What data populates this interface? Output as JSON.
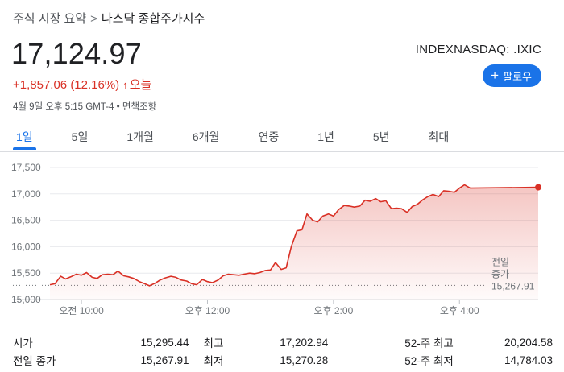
{
  "breadcrumb": {
    "parent": "주식 시장 요약",
    "separator": ">",
    "current": "나스닥 종합주가지수"
  },
  "quote": {
    "price": "17,124.97",
    "ticker": "INDEXNASDAQ: .IXIC",
    "change": "+1,857.06 (12.16%)",
    "change_arrow": "↑",
    "change_period": "오늘",
    "timestamp": "4월 9일 오후 5:15 GMT-4",
    "meta_separator": "•",
    "disclaimer": "면책조항",
    "up_color": "#d93025"
  },
  "follow_button": {
    "icon": "plus-icon",
    "label": "팔로우",
    "color": "#1a73e8"
  },
  "tabs": [
    {
      "label": "1일",
      "active": true
    },
    {
      "label": "5일",
      "active": false
    },
    {
      "label": "1개월",
      "active": false
    },
    {
      "label": "6개월",
      "active": false
    },
    {
      "label": "연중",
      "active": false
    },
    {
      "label": "1년",
      "active": false
    },
    {
      "label": "5년",
      "active": false
    },
    {
      "label": "최대",
      "active": false
    }
  ],
  "chart_data": {
    "type": "area",
    "title": "",
    "xlabel": "",
    "ylabel": "",
    "ylim": [
      15000,
      17500
    ],
    "yticks": [
      "17,500",
      "17,000",
      "16,500",
      "16,000",
      "15,500",
      "15,000"
    ],
    "ytick_values": [
      17500,
      17000,
      16500,
      16000,
      15500,
      15000
    ],
    "xticks": [
      {
        "label": "오전 10:00",
        "hour": 10.0
      },
      {
        "label": "오후 12:00",
        "hour": 12.0
      },
      {
        "label": "오후 2:00",
        "hour": 14.0
      },
      {
        "label": "오후 4:00",
        "hour": 16.0
      }
    ],
    "xlim": [
      9.5,
      17.25
    ],
    "grid": true,
    "line_color": "#d93025",
    "previous_close": {
      "label_line1": "전일",
      "label_line2": "종가",
      "value": 15267.91,
      "value_label": "15,267.91"
    },
    "series": [
      {
        "points": [
          [
            9.5,
            15280
          ],
          [
            9.58,
            15300
          ],
          [
            9.67,
            15440
          ],
          [
            9.75,
            15390
          ],
          [
            9.83,
            15430
          ],
          [
            9.92,
            15480
          ],
          [
            10.0,
            15460
          ],
          [
            10.08,
            15510
          ],
          [
            10.17,
            15420
          ],
          [
            10.25,
            15400
          ],
          [
            10.33,
            15470
          ],
          [
            10.42,
            15480
          ],
          [
            10.5,
            15470
          ],
          [
            10.58,
            15540
          ],
          [
            10.67,
            15450
          ],
          [
            10.75,
            15430
          ],
          [
            10.83,
            15400
          ],
          [
            10.92,
            15340
          ],
          [
            11.0,
            15300
          ],
          [
            11.08,
            15260
          ],
          [
            11.17,
            15310
          ],
          [
            11.25,
            15370
          ],
          [
            11.33,
            15410
          ],
          [
            11.42,
            15440
          ],
          [
            11.5,
            15420
          ],
          [
            11.58,
            15370
          ],
          [
            11.67,
            15350
          ],
          [
            11.75,
            15300
          ],
          [
            11.83,
            15280
          ],
          [
            11.92,
            15380
          ],
          [
            12.0,
            15340
          ],
          [
            12.08,
            15320
          ],
          [
            12.17,
            15370
          ],
          [
            12.25,
            15450
          ],
          [
            12.33,
            15480
          ],
          [
            12.42,
            15470
          ],
          [
            12.5,
            15460
          ],
          [
            12.58,
            15480
          ],
          [
            12.67,
            15500
          ],
          [
            12.75,
            15490
          ],
          [
            12.83,
            15510
          ],
          [
            12.92,
            15550
          ],
          [
            13.0,
            15560
          ],
          [
            13.08,
            15700
          ],
          [
            13.17,
            15570
          ],
          [
            13.25,
            15600
          ],
          [
            13.33,
            16000
          ],
          [
            13.42,
            16300
          ],
          [
            13.5,
            16320
          ],
          [
            13.58,
            16620
          ],
          [
            13.67,
            16500
          ],
          [
            13.75,
            16470
          ],
          [
            13.83,
            16580
          ],
          [
            13.92,
            16620
          ],
          [
            14.0,
            16580
          ],
          [
            14.08,
            16700
          ],
          [
            14.17,
            16780
          ],
          [
            14.25,
            16770
          ],
          [
            14.33,
            16750
          ],
          [
            14.42,
            16770
          ],
          [
            14.5,
            16880
          ],
          [
            14.58,
            16860
          ],
          [
            14.67,
            16910
          ],
          [
            14.75,
            16850
          ],
          [
            14.83,
            16870
          ],
          [
            14.92,
            16720
          ],
          [
            15.0,
            16730
          ],
          [
            15.08,
            16720
          ],
          [
            15.17,
            16650
          ],
          [
            15.25,
            16760
          ],
          [
            15.33,
            16800
          ],
          [
            15.42,
            16890
          ],
          [
            15.5,
            16950
          ],
          [
            15.58,
            16990
          ],
          [
            15.67,
            16950
          ],
          [
            15.75,
            17060
          ],
          [
            15.83,
            17050
          ],
          [
            15.92,
            17030
          ],
          [
            16.0,
            17110
          ],
          [
            16.08,
            17170
          ],
          [
            16.17,
            17110
          ],
          [
            17.25,
            17125
          ]
        ]
      }
    ]
  },
  "stats": [
    [
      {
        "label": "시가",
        "value": "15,295.44"
      },
      {
        "label": "최고",
        "value": "17,202.94"
      },
      {
        "label": "52-주 최고",
        "value": "20,204.58"
      }
    ],
    [
      {
        "label": "전일 종가",
        "value": "15,267.91"
      },
      {
        "label": "최저",
        "value": "15,270.28"
      },
      {
        "label": "52-주 최저",
        "value": "14,784.03"
      }
    ]
  ]
}
